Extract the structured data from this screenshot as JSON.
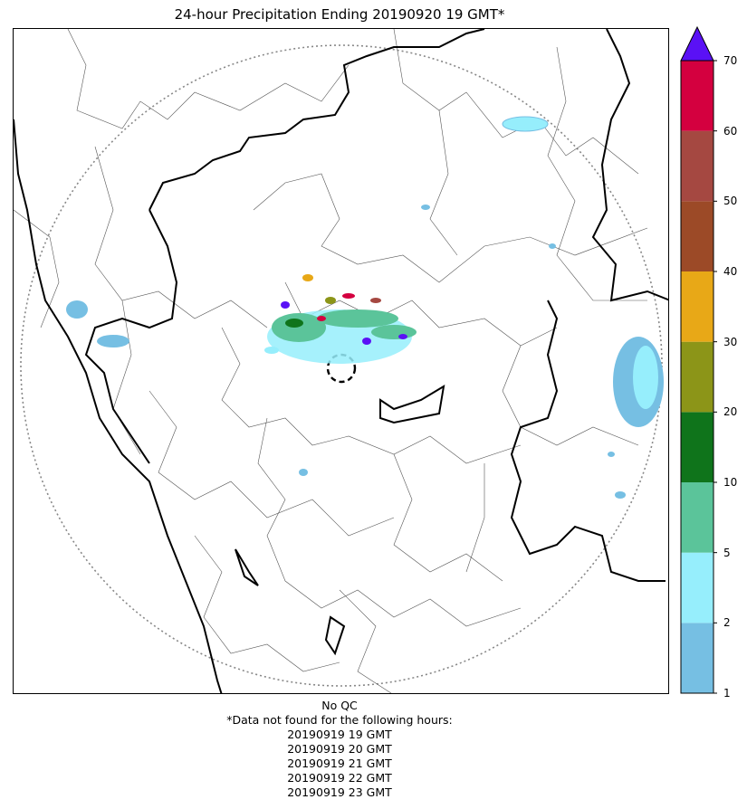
{
  "title": "24-hour Precipitation Ending 20190920 19 GMT*",
  "colorbar": {
    "ticks": [
      "1",
      "2",
      "5",
      "10",
      "20",
      "30",
      "40",
      "50",
      "60",
      "70"
    ],
    "levels": [
      {
        "from": "1",
        "to": "2",
        "color": "#76bfe3"
      },
      {
        "from": "2",
        "to": "5",
        "color": "#96eefc"
      },
      {
        "from": "5",
        "to": "10",
        "color": "#5bc49a"
      },
      {
        "from": "10",
        "to": "20",
        "color": "#0f741b"
      },
      {
        "from": "20",
        "to": "30",
        "color": "#8c9518"
      },
      {
        "from": "30",
        "to": "40",
        "color": "#e8a817"
      },
      {
        "from": "40",
        "to": "50",
        "color": "#9c4a27"
      },
      {
        "from": "50",
        "to": "60",
        "color": "#a54841"
      },
      {
        "from": "60",
        "to": "70",
        "color": "#d4003f"
      }
    ],
    "extend_color": "#5a11f5"
  },
  "footer": {
    "qc": "No QC",
    "missing_note": "*Data not found for the following hours:",
    "missing_hours": [
      "20190919 19 GMT",
      "20190919 20 GMT",
      "20190919 21 GMT",
      "20190919 22 GMT",
      "20190919 23 GMT"
    ]
  },
  "colors": {
    "state_border": "#000000",
    "district_border": "#555555",
    "range_ring": "#888888"
  }
}
